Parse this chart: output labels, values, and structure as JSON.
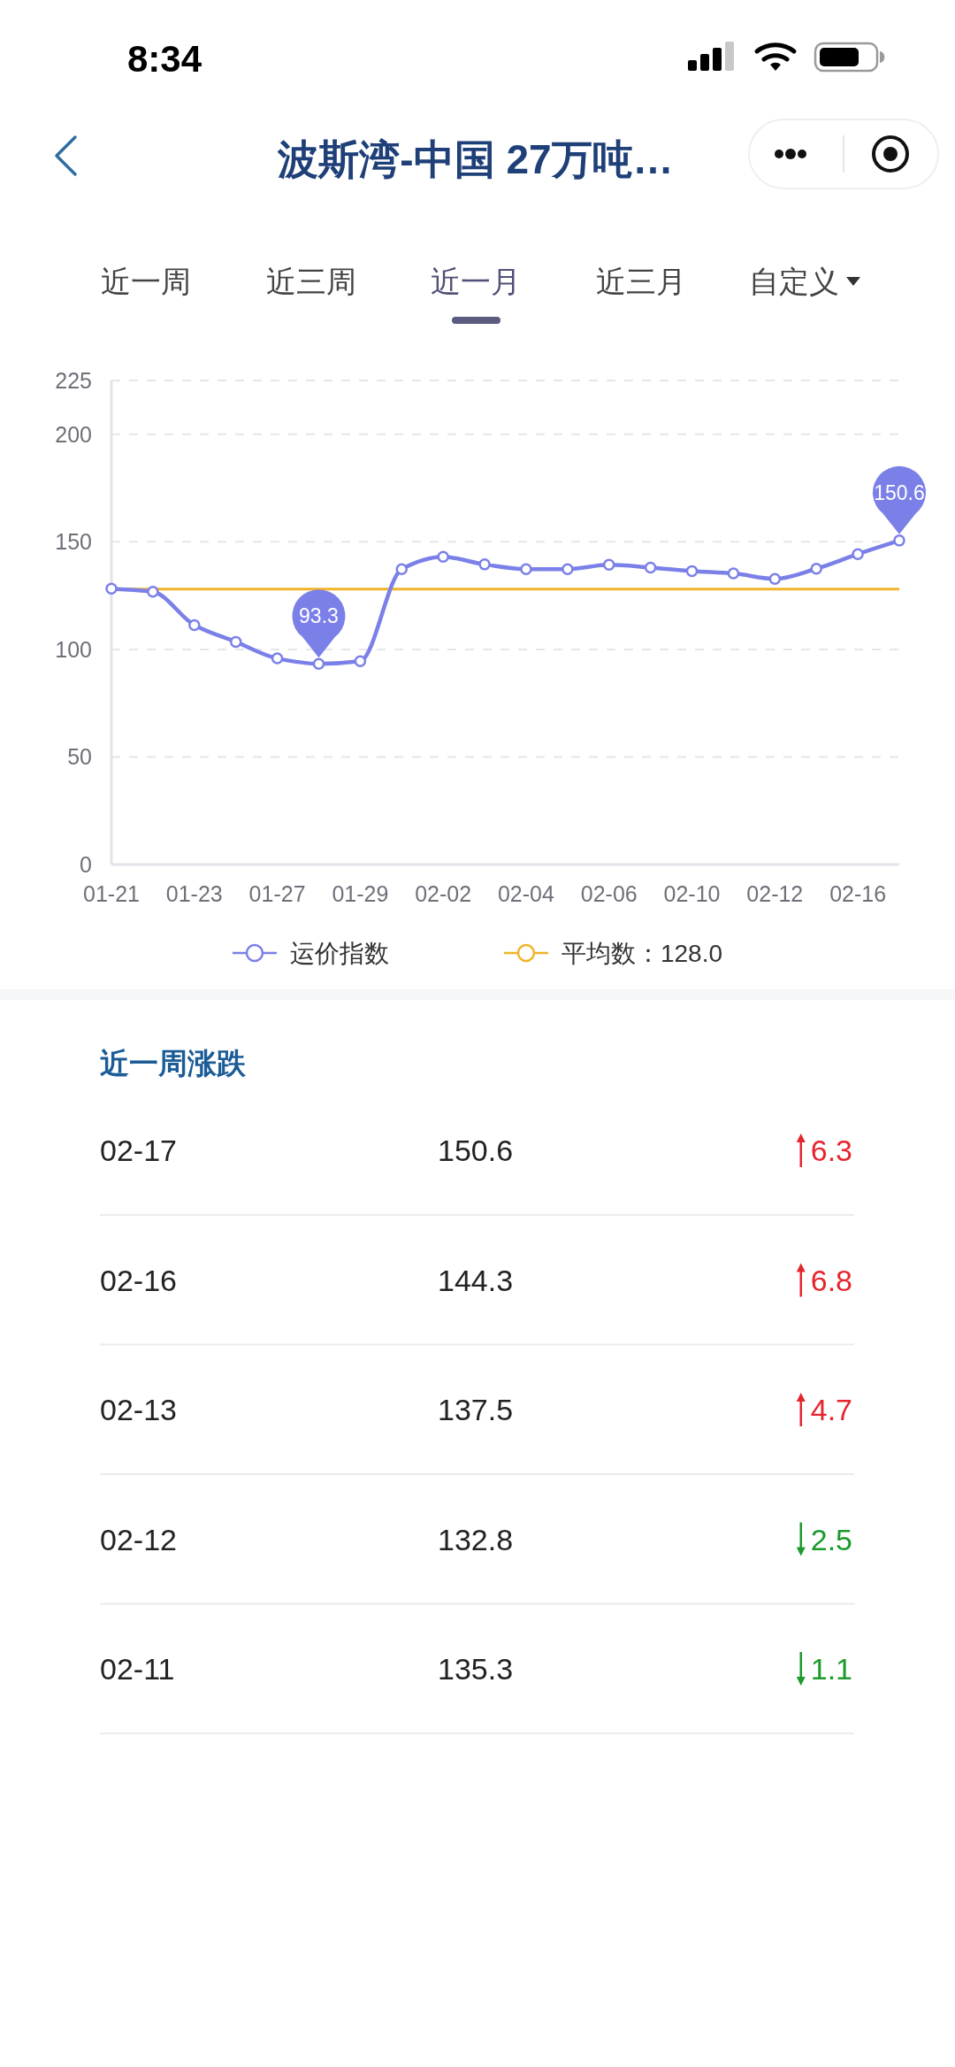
{
  "chart_data": [
    {
      "type": "line",
      "title": "波斯湾-中国 27万吨…",
      "annotations": [
        "8:34",
        "近一周",
        "近三周",
        "近一月",
        "近三月",
        "自定义"
      ],
      "categories": [
        "01-21",
        null,
        "01-23",
        null,
        "01-27",
        null,
        "01-29",
        null,
        "02-02",
        null,
        "02-04",
        null,
        "02-06",
        null,
        "02-10",
        null,
        "02-12",
        null,
        "02-16",
        null
      ],
      "series": [
        {
          "name": "运价指数",
          "color": "#7b80e8",
          "values": [
            128.2,
            126.8,
            111.3,
            103.5,
            95.8,
            93.3,
            94.5,
            137.3,
            143.0,
            139.5,
            137.3,
            137.3,
            139.3,
            138.0,
            136.4,
            135.3,
            132.8,
            137.5,
            144.3,
            150.6
          ],
          "value_labels": [
            null,
            null,
            null,
            null,
            null,
            "93.3",
            null,
            null,
            null,
            null,
            null,
            null,
            null,
            null,
            null,
            null,
            null,
            null,
            null,
            "150.6"
          ]
        }
      ],
      "ylim": [
        0,
        225
      ],
      "yticks": [
        0,
        50,
        100,
        150,
        200,
        225
      ],
      "ref_lines": [
        {
          "axis": "y",
          "value": 128.0,
          "label": "平均数：128.0",
          "color": "#f0b429"
        }
      ],
      "grid": "y",
      "legend": "bottom",
      "marker": "circle",
      "line_style": "solid"
    },
    {
      "type": "other",
      "title": "近一周涨跌",
      "categories": [
        "02-17",
        "02-16",
        "02-13",
        "02-12",
        "02-11"
      ],
      "data_labels": true,
      "series": [
        {
          "values": [
            150.6,
            144.3,
            137.5,
            132.8,
            135.3
          ]
        },
        {
          "color": "#e5262f",
          "values": [
            6.3,
            6.8,
            4.7,
            null,
            null
          ]
        },
        {
          "color": "#1c9a2c",
          "values": [
            null,
            null,
            null,
            2.5,
            1.1
          ]
        }
      ]
    }
  ]
}
